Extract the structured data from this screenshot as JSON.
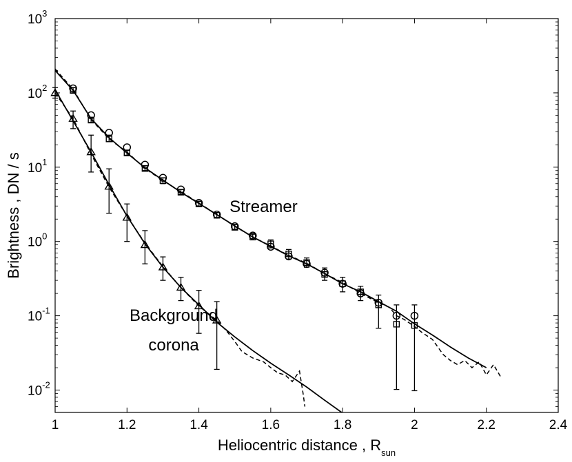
{
  "chart_data": {
    "type": "scatter",
    "title": "",
    "xlabel": "Heliocentric distance , R",
    "xlabel_sub": "sun",
    "ylabel": "Brightness , DN / s",
    "xlim": [
      1.0,
      2.4
    ],
    "ylim": [
      0.005,
      1000
    ],
    "yscale": "log",
    "grid": false,
    "x_ticks": [
      {
        "value": 1.0,
        "label": "1"
      },
      {
        "value": 1.2,
        "label": "1.2"
      },
      {
        "value": 1.4,
        "label": "1.4"
      },
      {
        "value": 1.6,
        "label": "1.6"
      },
      {
        "value": 1.8,
        "label": "1.8"
      },
      {
        "value": 2.0,
        "label": "2"
      },
      {
        "value": 2.2,
        "label": "2.2"
      },
      {
        "value": 2.4,
        "label": "2.4"
      }
    ],
    "y_ticks": [
      {
        "value": 0.01,
        "base": "10",
        "exp": "-2"
      },
      {
        "value": 0.1,
        "base": "10",
        "exp": "-1"
      },
      {
        "value": 1,
        "base": "10",
        "exp": "0"
      },
      {
        "value": 10,
        "base": "10",
        "exp": "1"
      },
      {
        "value": 100,
        "base": "10",
        "exp": "2"
      },
      {
        "value": 1000,
        "base": "10",
        "exp": "3"
      }
    ],
    "annotations": [
      {
        "text": "Streamer",
        "x": 1.58,
        "y": 2.5,
        "anchor": "middle"
      },
      {
        "text": "Background",
        "x": 1.33,
        "y": 0.085,
        "anchor": "middle"
      },
      {
        "text": "corona",
        "x": 1.33,
        "y": 0.034,
        "anchor": "middle"
      }
    ],
    "series": [
      {
        "marker": "circle",
        "x": [
          1.05,
          1.1,
          1.15,
          1.2,
          1.25,
          1.3,
          1.35,
          1.4,
          1.45,
          1.5,
          1.55,
          1.6,
          1.65,
          1.7,
          1.75,
          1.8,
          1.85,
          1.9,
          1.95,
          2.0
        ],
        "y": [
          115,
          50,
          29,
          18.5,
          10.8,
          7.2,
          5.0,
          3.3,
          2.3,
          1.6,
          1.2,
          0.85,
          0.63,
          0.5,
          0.38,
          0.27,
          0.2,
          0.15,
          0.1,
          0.1
        ]
      },
      {
        "marker": "square",
        "x": [
          1.05,
          1.1,
          1.15,
          1.2,
          1.25,
          1.3,
          1.35,
          1.4,
          1.45,
          1.5,
          1.55,
          1.6,
          1.65,
          1.7,
          1.75,
          1.8,
          1.85,
          1.9,
          1.95,
          2.0
        ],
        "y": [
          108,
          43,
          24,
          15.5,
          9.6,
          6.6,
          4.6,
          3.2,
          2.25,
          1.55,
          1.15,
          0.93,
          0.68,
          0.52,
          0.36,
          0.27,
          0.21,
          0.14,
          0.077,
          0.074
        ],
        "err_low": [
          100,
          40,
          22,
          14.5,
          9.0,
          6.0,
          4.3,
          3.0,
          2.1,
          1.45,
          1.05,
          0.82,
          0.58,
          0.45,
          0.3,
          0.21,
          0.16,
          0.068,
          0.0102,
          0.0098
        ],
        "err_high": [
          118,
          47,
          27,
          17,
          10.5,
          7.2,
          5.0,
          3.45,
          2.45,
          1.7,
          1.28,
          1.05,
          0.78,
          0.6,
          0.44,
          0.33,
          0.25,
          0.19,
          0.14,
          0.14
        ]
      },
      {
        "marker": "triangle",
        "x": [
          1.0,
          1.05,
          1.1,
          1.15,
          1.2,
          1.25,
          1.3,
          1.35,
          1.4,
          1.45
        ],
        "y": [
          100,
          45,
          16,
          5.5,
          2.1,
          0.9,
          0.45,
          0.24,
          0.135,
          0.087
        ],
        "err_low": [
          85,
          33,
          8.6,
          2.4,
          1.0,
          0.5,
          0.3,
          0.16,
          0.058,
          0.019
        ],
        "err_high": [
          118,
          57,
          27,
          9.5,
          3.2,
          1.4,
          0.62,
          0.33,
          0.22,
          0.155
        ]
      },
      {
        "line": "solid",
        "x": [
          1.0,
          1.05,
          1.1,
          1.15,
          1.2,
          1.25,
          1.3,
          1.35,
          1.4,
          1.45,
          1.5,
          1.55,
          1.6,
          1.65,
          1.7,
          1.75,
          1.8,
          1.85,
          1.9,
          1.95,
          2.0,
          2.05,
          2.1,
          2.15,
          2.2
        ],
        "y": [
          200,
          108,
          45,
          25,
          15.5,
          9.8,
          6.7,
          4.6,
          3.25,
          2.3,
          1.62,
          1.15,
          0.86,
          0.64,
          0.5,
          0.37,
          0.27,
          0.21,
          0.155,
          0.115,
          0.078,
          0.055,
          0.038,
          0.027,
          0.02
        ]
      },
      {
        "line": "dashed",
        "x": [
          1.0,
          1.05,
          1.1,
          1.15,
          1.2,
          1.25,
          1.3,
          1.35,
          1.4,
          1.45,
          1.5,
          1.55,
          1.6,
          1.65,
          1.7,
          1.75,
          1.8,
          1.85,
          1.9,
          1.93,
          1.95,
          1.97,
          2.0,
          2.02,
          2.05,
          2.08,
          2.1,
          2.12,
          2.14,
          2.16,
          2.18,
          2.2,
          2.22,
          2.24
        ],
        "y": [
          210,
          112,
          44,
          24,
          16,
          9.6,
          6.6,
          4.7,
          3.3,
          2.3,
          1.6,
          1.15,
          0.87,
          0.65,
          0.51,
          0.37,
          0.28,
          0.2,
          0.15,
          0.13,
          0.1,
          0.09,
          0.072,
          0.06,
          0.048,
          0.03,
          0.025,
          0.022,
          0.025,
          0.02,
          0.024,
          0.016,
          0.022,
          0.015
        ]
      },
      {
        "line": "solid",
        "x": [
          1.0,
          1.05,
          1.1,
          1.15,
          1.2,
          1.25,
          1.3,
          1.35,
          1.4,
          1.45,
          1.5,
          1.55,
          1.6,
          1.65,
          1.7,
          1.75,
          1.8
        ],
        "y": [
          110,
          42,
          16,
          5.8,
          2.2,
          0.93,
          0.45,
          0.24,
          0.14,
          0.082,
          0.052,
          0.034,
          0.023,
          0.016,
          0.011,
          0.0073,
          0.0049
        ]
      },
      {
        "line": "dashed",
        "x": [
          1.0,
          1.05,
          1.1,
          1.15,
          1.2,
          1.25,
          1.3,
          1.35,
          1.4,
          1.45,
          1.48,
          1.5,
          1.52,
          1.55,
          1.58,
          1.6,
          1.62,
          1.64,
          1.66,
          1.68,
          1.69,
          1.695
        ],
        "y": [
          100,
          45,
          15,
          5.4,
          2.2,
          0.95,
          0.46,
          0.24,
          0.135,
          0.087,
          0.06,
          0.045,
          0.033,
          0.027,
          0.024,
          0.02,
          0.017,
          0.016,
          0.013,
          0.018,
          0.009,
          0.006
        ]
      }
    ]
  }
}
